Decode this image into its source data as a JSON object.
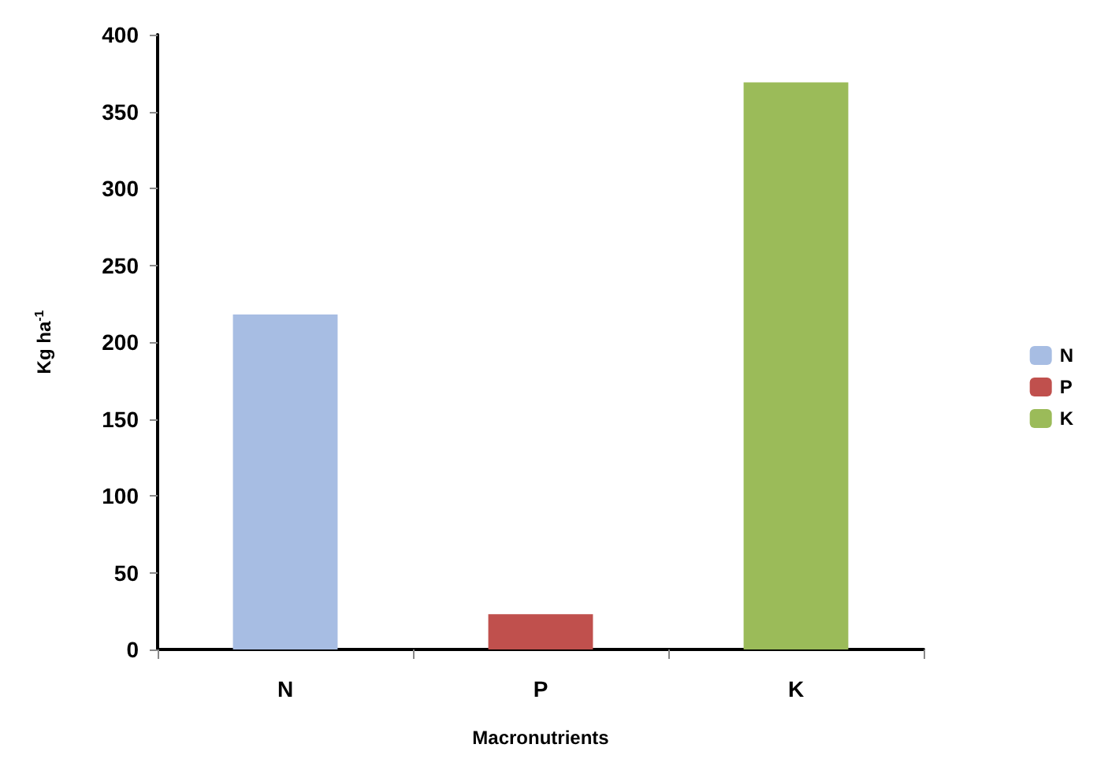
{
  "chart_data": {
    "type": "bar",
    "xlabel": "Macronutrients",
    "ylabel": "Kg ha$^{-1}$",
    "categories": [
      "N",
      "P",
      "K"
    ],
    "stacked": true,
    "series": [
      {
        "name": "N",
        "color": "#a7bde3",
        "values": [
          218,
          null,
          null
        ]
      },
      {
        "name": "P",
        "color": "#c0504d",
        "values": [
          null,
          23,
          null
        ]
      },
      {
        "name": "K",
        "color": "#9bbb59",
        "values": [
          null,
          null,
          369
        ]
      }
    ],
    "ylim": [
      0,
      400
    ],
    "yticks": [
      0,
      50,
      100,
      150,
      200,
      250,
      300,
      350,
      400
    ],
    "grid": false,
    "legend": "right"
  }
}
